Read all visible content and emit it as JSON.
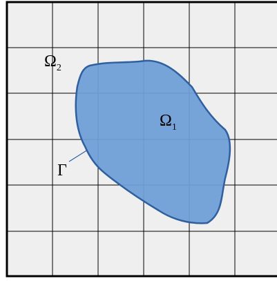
{
  "labels": [
    {
      "symbol": "Ω",
      "subscript": "2"
    },
    {
      "symbol": "Ω",
      "subscript": "1"
    },
    {
      "symbol": "Γ"
    }
  ]
}
